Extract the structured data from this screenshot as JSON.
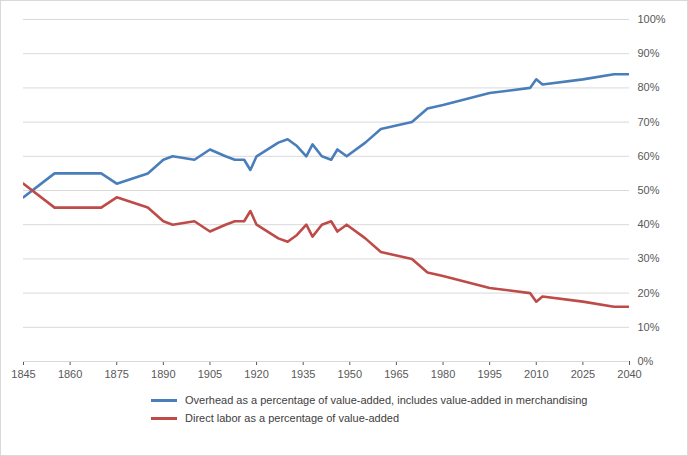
{
  "chart_data": {
    "type": "line",
    "x": [
      1845,
      1855,
      1870,
      1875,
      1885,
      1890,
      1893,
      1900,
      1905,
      1910,
      1913,
      1916,
      1918,
      1920,
      1927,
      1930,
      1933,
      1936,
      1938,
      1941,
      1944,
      1946,
      1949,
      1955,
      1960,
      1965,
      1970,
      1975,
      1980,
      1995,
      2008,
      2010,
      2012,
      2025,
      2035,
      2040
    ],
    "series": [
      {
        "name": "Overhead as a percentage of value-added, includes value-added in merchandising",
        "color": "#4a7ebb",
        "values": [
          48,
          55,
          55,
          52,
          55,
          59,
          60,
          59,
          62,
          60,
          59,
          59,
          56,
          60,
          64,
          65,
          63,
          60,
          63.5,
          60,
          59,
          62,
          60,
          64,
          68,
          69,
          70,
          74,
          75,
          78.5,
          80,
          82.5,
          81,
          82.5,
          84,
          84
        ]
      },
      {
        "name": "Direct labor as a percentage of value-added",
        "color": "#be4b48",
        "values": [
          52,
          45,
          45,
          48,
          45,
          41,
          40,
          41,
          38,
          40,
          41,
          41,
          44,
          40,
          36,
          35,
          37,
          40,
          36.5,
          40,
          41,
          38,
          40,
          36,
          32,
          31,
          30,
          26,
          25,
          21.5,
          20,
          17.5,
          19,
          17.5,
          16,
          16
        ]
      }
    ],
    "xlim": [
      1845,
      2040
    ],
    "xticks": [
      1845,
      1860,
      1875,
      1890,
      1905,
      1920,
      1935,
      1950,
      1965,
      1980,
      1995,
      2010,
      2025,
      2040
    ],
    "ylim": [
      0,
      100
    ],
    "yticks": [
      {
        "value": 0,
        "label": "0%"
      },
      {
        "value": 10,
        "label": "10%"
      },
      {
        "value": 20,
        "label": "20%"
      },
      {
        "value": 30,
        "label": "30%"
      },
      {
        "value": 40,
        "label": "40%"
      },
      {
        "value": 50,
        "label": "50%"
      },
      {
        "value": 60,
        "label": "60%"
      },
      {
        "value": 70,
        "label": "70%"
      },
      {
        "value": 80,
        "label": "80%"
      },
      {
        "value": 90,
        "label": "90%"
      },
      {
        "value": 100,
        "label": "100%"
      }
    ],
    "grid": true,
    "legend": "bottom"
  }
}
